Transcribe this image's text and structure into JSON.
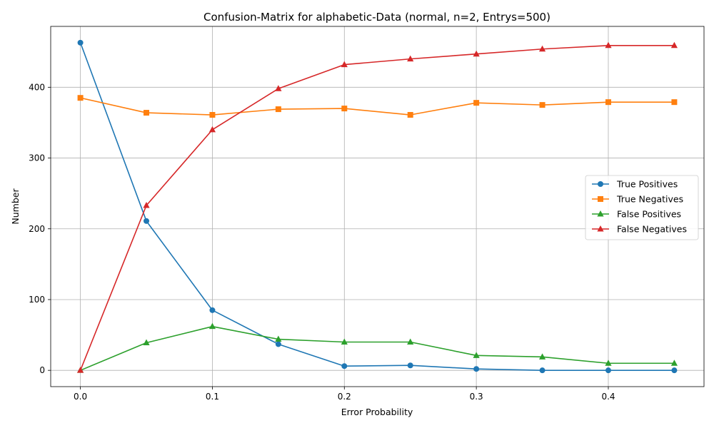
{
  "chart_data": {
    "type": "line",
    "title": "Confusion-Matrix for alphabetic-Data (normal, n=2, Entrys=500)",
    "xlabel": "Error Probability",
    "ylabel": "Number",
    "x": [
      0.0,
      0.05,
      0.1,
      0.15,
      0.2,
      0.25,
      0.3,
      0.35,
      0.4,
      0.45
    ],
    "xlim": [
      -0.0225,
      0.4725
    ],
    "ylim": [
      -23,
      486
    ],
    "xticks": [
      0.0,
      0.1,
      0.2,
      0.3,
      0.4
    ],
    "xtick_labels": [
      "0.0",
      "0.1",
      "0.2",
      "0.3",
      "0.4"
    ],
    "yticks": [
      0,
      100,
      200,
      300,
      400
    ],
    "ytick_labels": [
      "0",
      "100",
      "200",
      "300",
      "400"
    ],
    "grid": true,
    "legend_position": "center-right",
    "series": [
      {
        "name": "True Positives",
        "color": "#1f77b4",
        "marker": "circle",
        "values": [
          463,
          211,
          85,
          37,
          6,
          7,
          2,
          0,
          0,
          0
        ]
      },
      {
        "name": "True Negatives",
        "color": "#ff7f0e",
        "marker": "square",
        "values": [
          385,
          364,
          361,
          369,
          370,
          361,
          378,
          375,
          379,
          379
        ]
      },
      {
        "name": "False Positives",
        "color": "#2ca02c",
        "marker": "triangle",
        "values": [
          0,
          39,
          62,
          44,
          40,
          40,
          21,
          19,
          10,
          10
        ]
      },
      {
        "name": "False Negatives",
        "color": "#d62728",
        "marker": "triangle",
        "values": [
          0,
          233,
          340,
          398,
          432,
          440,
          447,
          454,
          459,
          459
        ]
      }
    ]
  }
}
